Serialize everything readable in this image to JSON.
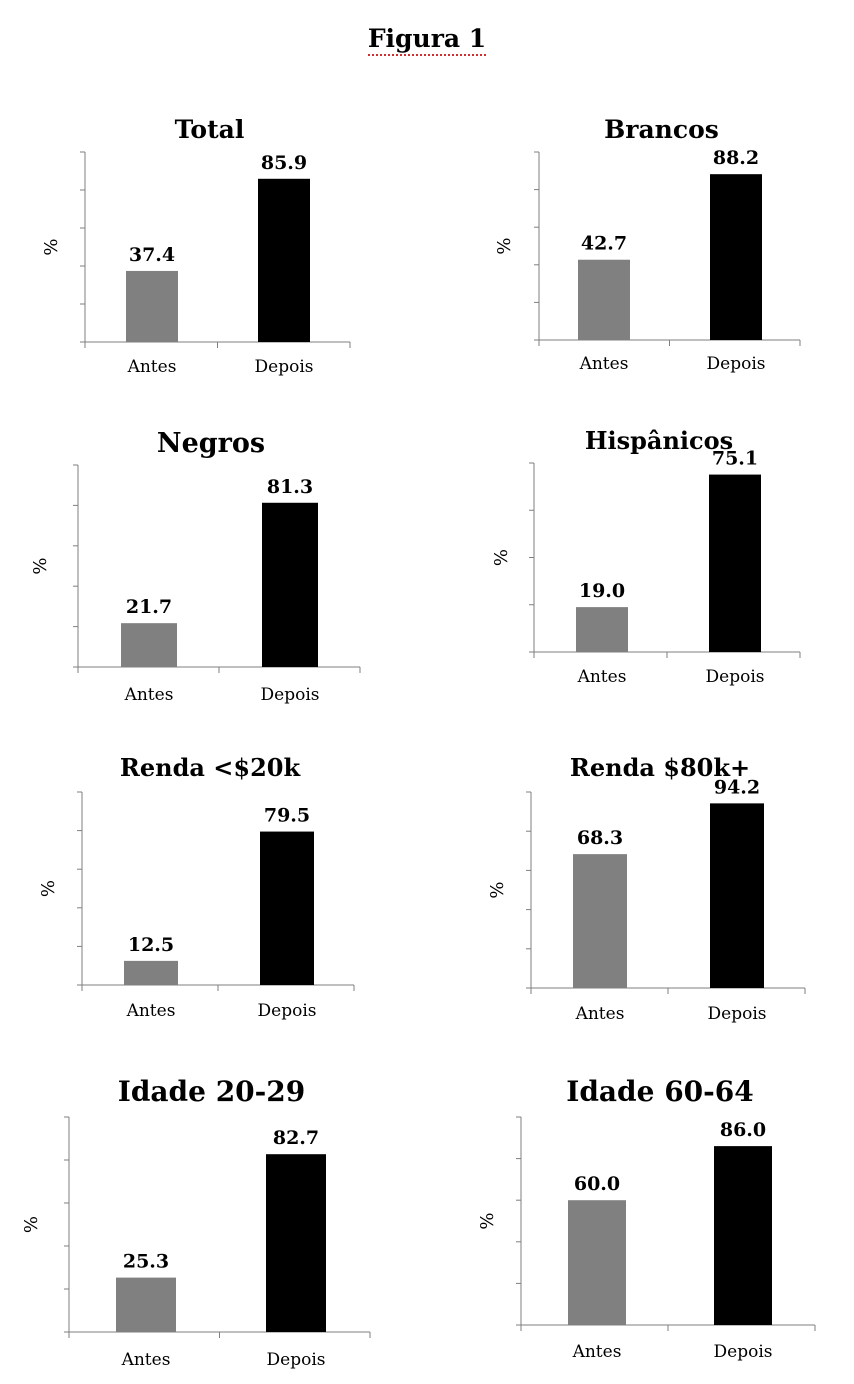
{
  "figure": {
    "title": "Figura 1"
  },
  "colors": {
    "antes": "#808080",
    "depois": "#000000",
    "axis": "#7f7f7f"
  },
  "chart_data": [
    {
      "type": "bar",
      "title": "Total",
      "ylabel": "%",
      "categories": [
        "Antes",
        "Depois"
      ],
      "values": [
        37.4,
        85.9
      ],
      "ylim": [
        0,
        100
      ]
    },
    {
      "type": "bar",
      "title": "Brancos",
      "ylabel": "%",
      "categories": [
        "Antes",
        "Depois"
      ],
      "values": [
        42.7,
        88.2
      ],
      "ylim": [
        0,
        100
      ]
    },
    {
      "type": "bar",
      "title": "Negros",
      "ylabel": "%",
      "categories": [
        "Antes",
        "Depois"
      ],
      "values": [
        21.7,
        81.3
      ],
      "ylim": [
        0,
        100
      ]
    },
    {
      "type": "bar",
      "title": "Hispânicos",
      "ylabel": "%",
      "categories": [
        "Antes",
        "Depois"
      ],
      "values": [
        19.0,
        75.1
      ],
      "ylim": [
        0,
        80
      ]
    },
    {
      "type": "bar",
      "title": "Renda <$20k",
      "ylabel": "%",
      "categories": [
        "Antes",
        "Depois"
      ],
      "values": [
        12.5,
        79.5
      ],
      "ylim": [
        0,
        100
      ]
    },
    {
      "type": "bar",
      "title": "Renda $80k+",
      "ylabel": "%",
      "categories": [
        "Antes",
        "Depois"
      ],
      "values": [
        68.3,
        94.2
      ],
      "ylim": [
        0,
        100
      ]
    },
    {
      "type": "bar",
      "title": "Idade 20-29",
      "ylabel": "%",
      "categories": [
        "Antes",
        "Depois"
      ],
      "values": [
        25.3,
        82.7
      ],
      "ylim": [
        0,
        100
      ]
    },
    {
      "type": "bar",
      "title": "Idade 60-64",
      "ylabel": "%",
      "categories": [
        "Antes",
        "Depois"
      ],
      "values": [
        60.0,
        86.0
      ],
      "ylim": [
        0,
        100
      ]
    }
  ]
}
